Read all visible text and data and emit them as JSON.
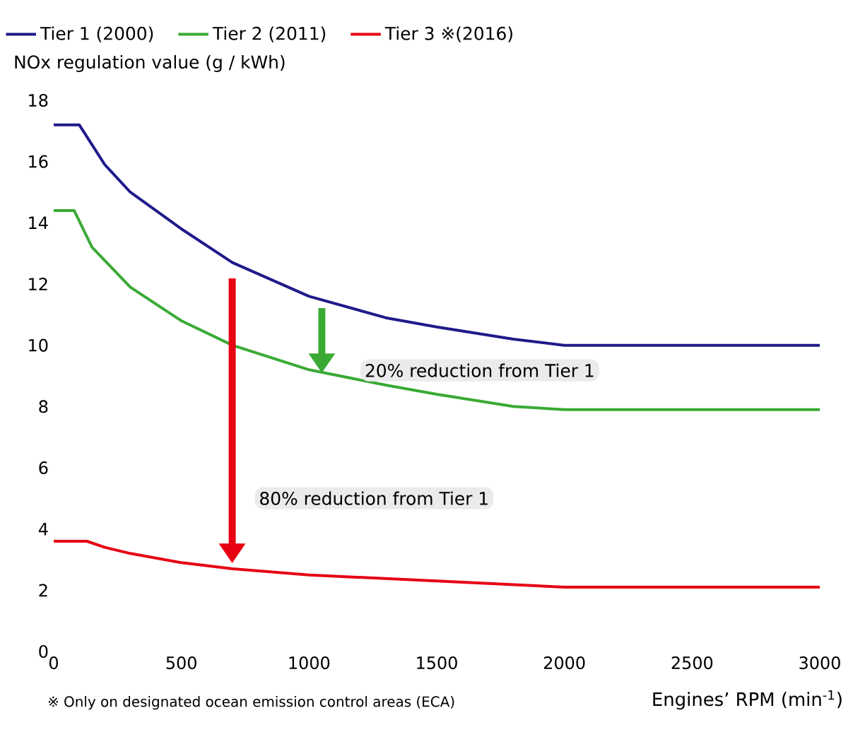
{
  "chart_data": {
    "type": "line",
    "ylabel": "NOx regulation value (g / kWh)",
    "xlabel": "Engines’ RPM (min$^{-1}$)",
    "xlim": [
      0,
      3000
    ],
    "ylim": [
      0,
      18
    ],
    "xticks": [
      0,
      500,
      1000,
      1500,
      2000,
      2500,
      3000
    ],
    "yticks": [
      0,
      2,
      4,
      6,
      8,
      10,
      12,
      14,
      16,
      18
    ],
    "legend": "top",
    "grid": false,
    "marker": "none",
    "line_style": "solid",
    "series": [
      {
        "name": "Tier 1 (2000)",
        "color": "#1f1a8a",
        "x": [
          0,
          100,
          200,
          300,
          500,
          700,
          1000,
          1300,
          1500,
          1800,
          2000,
          3000
        ],
        "values": [
          17.2,
          17.2,
          15.9,
          15.0,
          13.8,
          12.7,
          11.6,
          10.9,
          10.6,
          10.2,
          10.0,
          10.0
        ]
      },
      {
        "name": "Tier 2 (2011)",
        "color": "#3aaa35",
        "x": [
          0,
          80,
          150,
          300,
          500,
          700,
          1000,
          1300,
          1500,
          1800,
          2000,
          3000
        ],
        "values": [
          14.4,
          14.4,
          13.2,
          11.9,
          10.8,
          10.0,
          9.2,
          8.7,
          8.4,
          8.0,
          7.9,
          7.9
        ]
      },
      {
        "name": "Tier 3 ※(2016)",
        "color": "#e60012",
        "x": [
          0,
          130,
          200,
          300,
          500,
          700,
          1000,
          1500,
          2000,
          3000
        ],
        "values": [
          3.6,
          3.6,
          3.4,
          3.2,
          2.9,
          2.7,
          2.5,
          2.3,
          2.1,
          2.1
        ]
      }
    ],
    "annotations": [
      "20% reduction from Tier 1",
      "80% reduction from Tier 1",
      "※ Only on designated ocean emission control areas (ECA)"
    ]
  }
}
